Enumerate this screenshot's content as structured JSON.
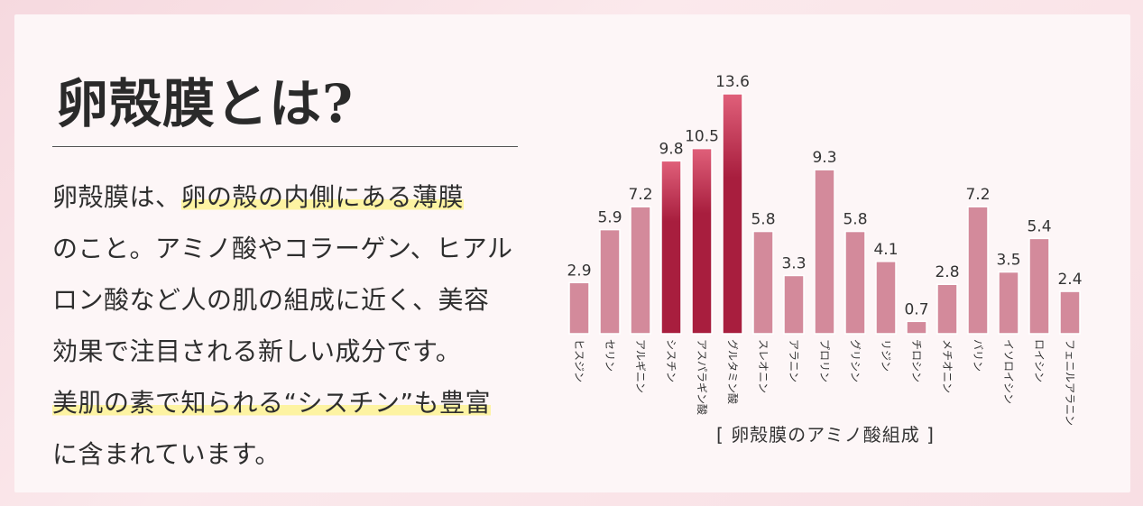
{
  "heading": {
    "title": "卵殻膜とは?"
  },
  "description": {
    "lines": [
      {
        "before": "卵殻膜は、",
        "highlight": "卵の殻の内側にある薄膜",
        "after": ""
      },
      {
        "before": "のこと。アミノ酸やコラーゲン、ヒアル",
        "highlight": "",
        "after": ""
      },
      {
        "before": "ロン酸など人の肌の組成に近く、美容",
        "highlight": "",
        "after": ""
      },
      {
        "before": "効果で注目される新しい成分です。",
        "highlight": "",
        "after": ""
      },
      {
        "before": "",
        "highlight": "美肌の素で知られる“シスチン”も豊富",
        "after": ""
      },
      {
        "before": "に含まれています。",
        "highlight": "",
        "after": ""
      }
    ]
  },
  "chart_data": {
    "type": "bar",
    "title": "卵殻膜のアミノ酸組成",
    "caption_brackets": [
      "[",
      "]"
    ],
    "categories": [
      "ヒスジン",
      "セリン",
      "アルギニン",
      "シスチン",
      "アスパラギン酸",
      "グルタミン酸",
      "スレオニン",
      "アラニン",
      "プロリン",
      "グリシン",
      "リジン",
      "チロシン",
      "メチオニン",
      "バリン",
      "イソロイシン",
      "ロイシン",
      "フェニルアラニン"
    ],
    "values": [
      2.9,
      5.9,
      7.2,
      9.8,
      10.5,
      13.6,
      5.8,
      3.3,
      9.3,
      5.8,
      4.1,
      0.7,
      2.8,
      7.2,
      3.5,
      5.4,
      2.4
    ],
    "value_labels": [
      "2.9",
      "5.9",
      "7.2",
      "9.8",
      "10.5",
      "13.6",
      "5.8",
      "3.3",
      "9.3",
      "5.8",
      "4.1",
      "0.7",
      "2.8",
      "7.2",
      "3.5",
      "5.4",
      "2.4"
    ],
    "highlighted_categories": [
      "シスチン",
      "アスパラギン酸",
      "グルタミン酸"
    ],
    "ylim": [
      0,
      13.6
    ],
    "grid": false,
    "legend": "none",
    "colors": {
      "normal_fill": "#d38a9b",
      "highlight_fill": "#a81e3e",
      "highlight_top": "#e0607a",
      "bar_edge": "#ffffff"
    }
  }
}
